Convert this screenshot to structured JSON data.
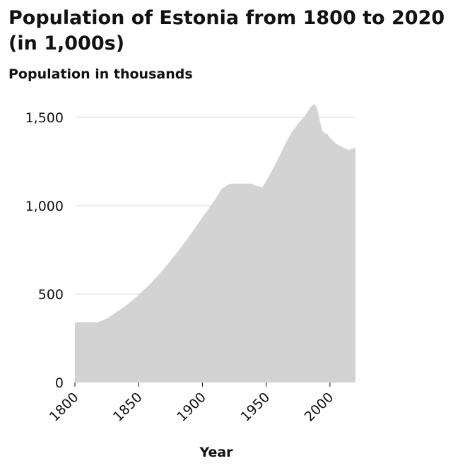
{
  "chart_data": {
    "type": "area",
    "title": "Population of Estonia from 1800 to 2020 (in 1,000s)",
    "ylabel": "Population in thousands",
    "xlabel": "Year",
    "xlim": [
      1800,
      2020
    ],
    "ylim": [
      0,
      1500
    ],
    "x_ticks": [
      1800,
      1850,
      1900,
      1950,
      2000
    ],
    "x_tick_labels": [
      "1800",
      "1850",
      "1900",
      "1950",
      "2000"
    ],
    "y_ticks": [
      0,
      500,
      1000,
      1500
    ],
    "y_tick_labels": [
      "0",
      "500",
      "1,000",
      "1,500"
    ],
    "grid": true,
    "fill_color": "#d3d3d3",
    "grid_color": "#dddddd",
    "series": [
      {
        "x": [
          1800,
          1810,
          1818,
          1825,
          1830,
          1840,
          1850,
          1860,
          1870,
          1880,
          1890,
          1900,
          1910,
          1915,
          1918,
          1922,
          1925,
          1930,
          1935,
          1939,
          1941,
          1944,
          1947,
          1950,
          1955,
          1960,
          1965,
          1970,
          1975,
          1980,
          1985,
          1988,
          1990,
          1992,
          1994,
          1996,
          1998,
          2000,
          2005,
          2010,
          2015,
          2020
        ],
        "y": [
          340,
          340,
          340,
          362,
          385,
          435,
          495,
          565,
          645,
          735,
          830,
          935,
          1035,
          1095,
          1110,
          1125,
          1125,
          1125,
          1125,
          1125,
          1115,
          1110,
          1105,
          1140,
          1205,
          1275,
          1350,
          1415,
          1465,
          1505,
          1560,
          1575,
          1550,
          1480,
          1425,
          1410,
          1405,
          1385,
          1350,
          1330,
          1315,
          1330
        ]
      }
    ]
  }
}
